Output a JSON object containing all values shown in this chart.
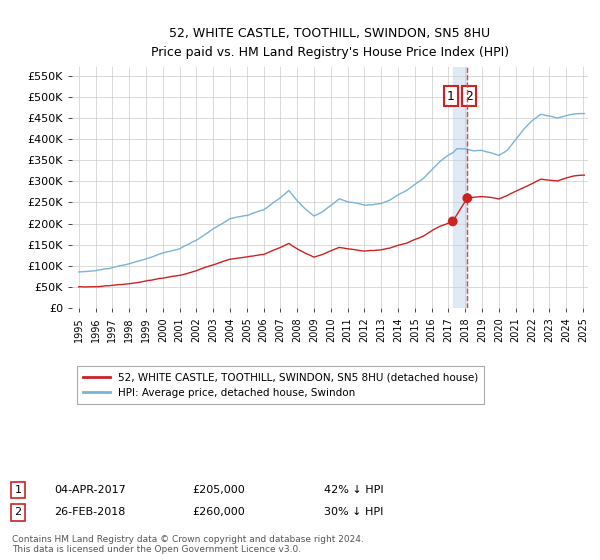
{
  "title": "52, WHITE CASTLE, TOOTHILL, SWINDON, SN5 8HU",
  "subtitle": "Price paid vs. HM Land Registry's House Price Index (HPI)",
  "legend_label_red": "52, WHITE CASTLE, TOOTHILL, SWINDON, SN5 8HU (detached house)",
  "legend_label_blue": "HPI: Average price, detached house, Swindon",
  "transaction1": {
    "label": "1",
    "date": "04-APR-2017",
    "price": "£205,000",
    "hpi": "42% ↓ HPI"
  },
  "transaction2": {
    "label": "2",
    "date": "26-FEB-2018",
    "price": "£260,000",
    "hpi": "30% ↓ HPI"
  },
  "footnote": "Contains HM Land Registry data © Crown copyright and database right 2024.\nThis data is licensed under the Open Government Licence v3.0.",
  "ylim": [
    0,
    570000
  ],
  "yticks": [
    0,
    50000,
    100000,
    150000,
    200000,
    250000,
    300000,
    350000,
    400000,
    450000,
    500000,
    550000
  ],
  "ytick_labels": [
    "£0",
    "£50K",
    "£100K",
    "£150K",
    "£200K",
    "£250K",
    "£300K",
    "£350K",
    "£400K",
    "£450K",
    "£500K",
    "£550K"
  ],
  "hpi_color": "#7ab3d4",
  "sale_color": "#cc2222",
  "vline_color": "#dd4444",
  "marker_color": "#cc2222",
  "shade_color": "#dce8f5",
  "background_color": "#ffffff",
  "grid_color": "#cccccc",
  "t1_year": 2017.25,
  "t1_y": 205000,
  "t2_year": 2018.12,
  "t2_y": 260000,
  "xlim_left": 1994.6,
  "xlim_right": 2025.3
}
